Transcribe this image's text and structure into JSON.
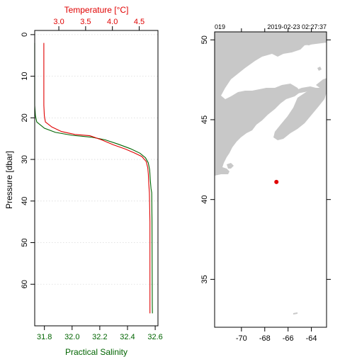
{
  "colors": {
    "salinity": "#006400",
    "temperature": "#e00000",
    "land": "#c8c8c8",
    "station": "#e00000",
    "axis": "#000000"
  },
  "chart_data": [
    {
      "type": "line",
      "xlabel": "Practical Salinity",
      "x2label": "Temperature [°C]",
      "ylabel": "Pressure [dbar]",
      "xlim": [
        31.73,
        32.62
      ],
      "x2lim": [
        2.55,
        4.85
      ],
      "ylim": [
        70,
        -1
      ],
      "y_reversed": true,
      "grid": true,
      "xticks": [
        "31.8",
        "32.0",
        "32.2",
        "32.4",
        "32.6"
      ],
      "x2ticks": [
        "3.0",
        "3.5",
        "4.0",
        "4.5"
      ],
      "yticks": [
        "0",
        "10",
        "20",
        "30",
        "40",
        "50",
        "60"
      ],
      "series": [
        {
          "axis": "x",
          "color": "#006400",
          "points": [
            [
              31.73,
              2
            ],
            [
              31.73,
              10
            ],
            [
              31.73,
              17
            ],
            [
              31.735,
              19.5
            ],
            [
              31.745,
              21
            ],
            [
              31.8,
              22.5
            ],
            [
              31.88,
              23.5
            ],
            [
              32.0,
              24.2
            ],
            [
              32.15,
              24.7
            ],
            [
              32.24,
              25.3
            ],
            [
              32.33,
              26.3
            ],
            [
              32.42,
              27.4
            ],
            [
              32.49,
              28.5
            ],
            [
              32.53,
              29.6
            ],
            [
              32.55,
              30.8
            ],
            [
              32.56,
              32.5
            ],
            [
              32.565,
              35
            ],
            [
              32.57,
              37
            ],
            [
              32.575,
              38
            ],
            [
              32.577,
              45
            ],
            [
              32.578,
              55
            ],
            [
              32.579,
              65
            ],
            [
              32.58,
              67
            ]
          ]
        },
        {
          "axis": "x2",
          "color": "#e00000",
          "points": [
            [
              2.72,
              2
            ],
            [
              2.72,
              10
            ],
            [
              2.72,
              17
            ],
            [
              2.73,
              19.5
            ],
            [
              2.75,
              21
            ],
            [
              2.87,
              22.2
            ],
            [
              3.05,
              23.3
            ],
            [
              3.3,
              24
            ],
            [
              3.58,
              24.3
            ],
            [
              3.8,
              25.3
            ],
            [
              4.02,
              26.5
            ],
            [
              4.24,
              27.5
            ],
            [
              4.42,
              28.5
            ],
            [
              4.55,
              29.3
            ],
            [
              4.63,
              30.5
            ],
            [
              4.66,
              32
            ],
            [
              4.67,
              33.5
            ],
            [
              4.68,
              36
            ],
            [
              4.69,
              38
            ],
            [
              4.7,
              45
            ],
            [
              4.7,
              55
            ],
            [
              4.7,
              65
            ],
            [
              4.7,
              67
            ]
          ]
        }
      ]
    },
    {
      "type": "map",
      "header_left": "019",
      "header_right": "2019-02-23 02:27:37",
      "xlim": [
        -72.3,
        -62.7
      ],
      "ylim": [
        32,
        50.5
      ],
      "xticks": [
        "-70",
        "-68",
        "-66",
        "-64"
      ],
      "yticks": [
        "35",
        "40",
        "45",
        "50"
      ],
      "station": {
        "lon": -67.0,
        "lat": 41.1
      }
    }
  ]
}
